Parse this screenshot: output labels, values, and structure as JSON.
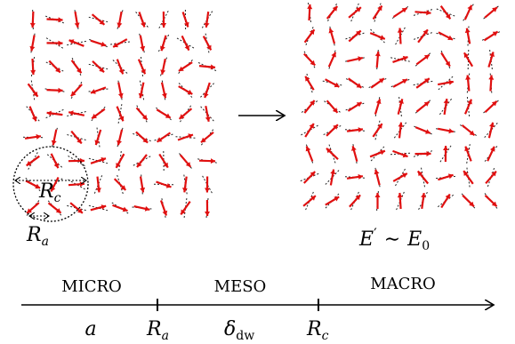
{
  "labels": {
    "r_c": "R",
    "r_c_sub": "c",
    "r_a": "R",
    "r_a_sub": "a",
    "energy_lhs": "E",
    "energy_prime": "′",
    "energy_sim": "∼",
    "energy_rhs": "E",
    "energy_rhs_sub": "0"
  },
  "scale_axis": {
    "regions": [
      "MICRO",
      "MESO",
      "MACRO"
    ],
    "ticks": {
      "a": "a",
      "r_a": "R",
      "r_a_sub": "a",
      "delta": "δ",
      "delta_sub": "dw",
      "r_c": "R",
      "r_c_sub": "c"
    }
  },
  "colors": {
    "arrow_red": "#e01010",
    "dash": "#222222",
    "ink": "#000000"
  },
  "lattice": {
    "left_rows": 9,
    "left_cols": 9,
    "right_rows": 9,
    "right_cols": 9
  }
}
